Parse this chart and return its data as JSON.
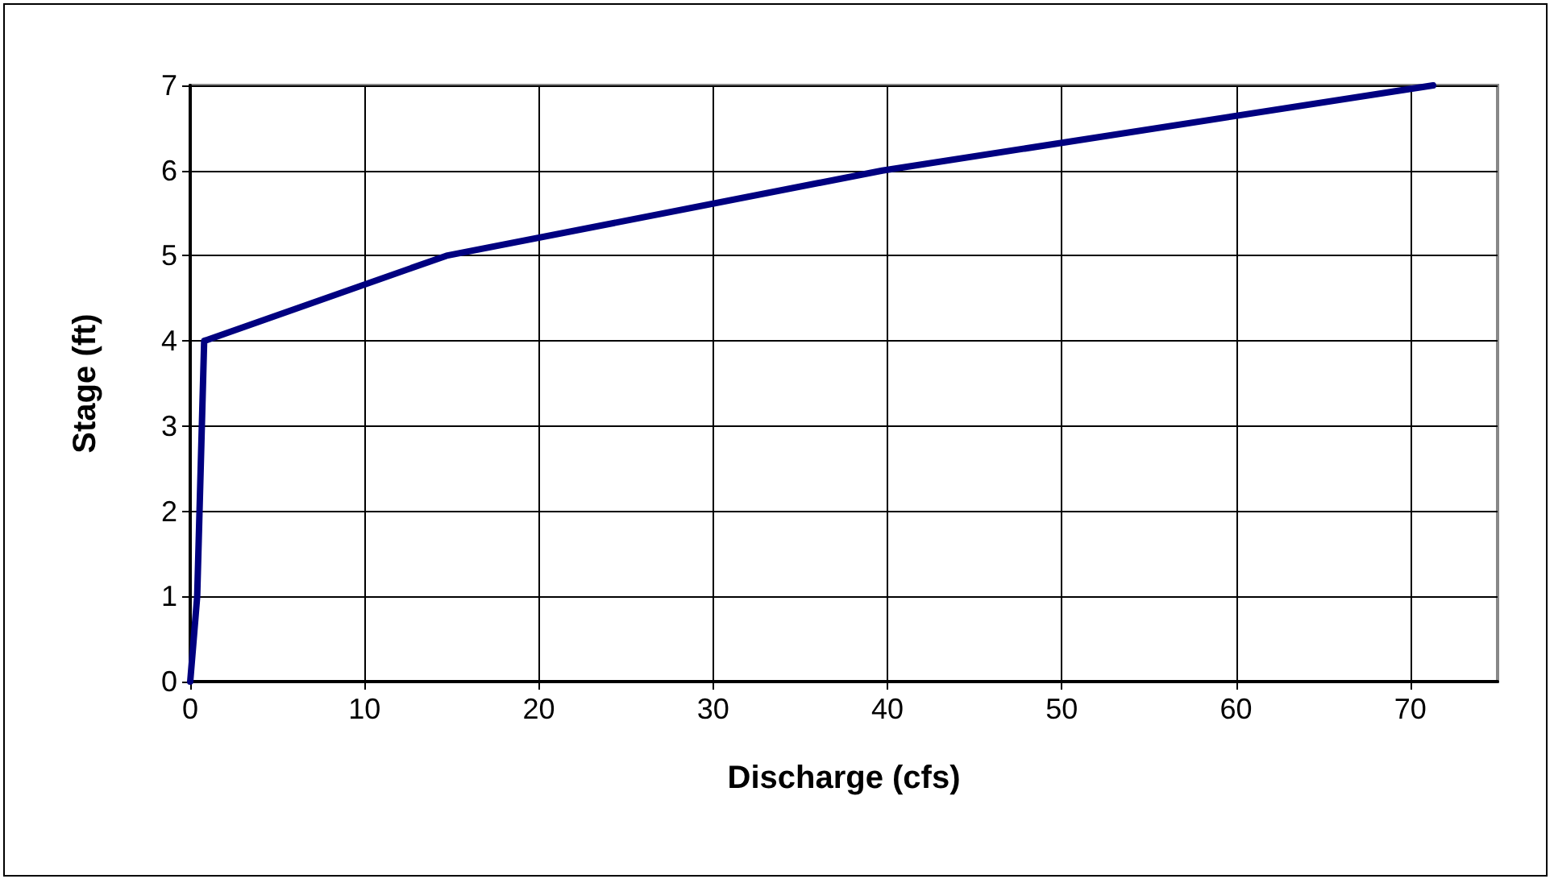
{
  "chart_data": {
    "type": "line",
    "xlabel": "Discharge (cfs)",
    "ylabel": "Stage (ft)",
    "x": [
      0,
      0.4,
      0.8,
      14.7,
      39.7,
      71.3
    ],
    "series": [
      {
        "color": "#000080",
        "values": [
          0,
          1,
          4,
          5,
          6,
          7
        ]
      }
    ],
    "xlim": [
      0,
      75
    ],
    "xticks": [
      0,
      10,
      20,
      30,
      40,
      50,
      60,
      70
    ],
    "ylim": [
      0,
      7
    ],
    "yticks": [
      0,
      1,
      2,
      3,
      4,
      5,
      6,
      7
    ],
    "grid": true,
    "marker": "none",
    "line_style": "solid"
  }
}
